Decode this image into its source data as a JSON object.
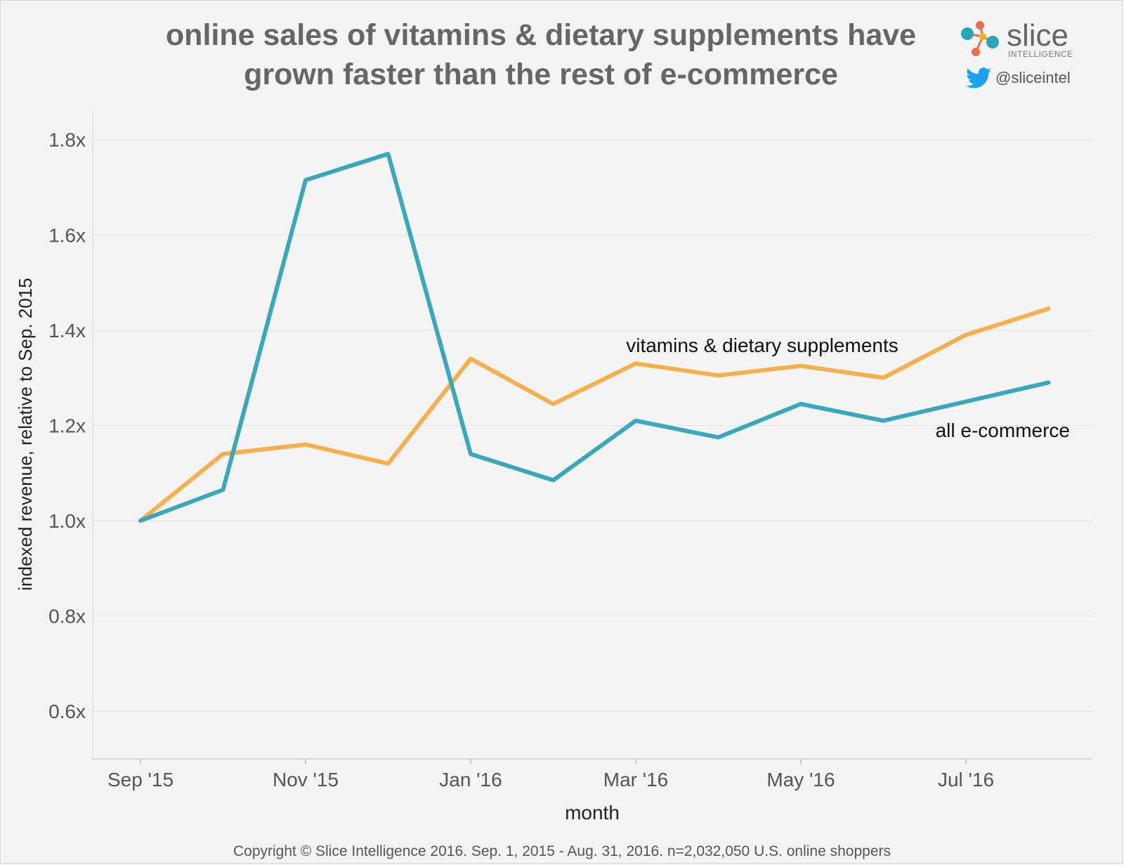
{
  "title": {
    "line1": "online sales of vitamins & dietary supplements have",
    "line2": "grown faster than the rest of e-commerce"
  },
  "brand": {
    "name": "slice",
    "subtitle": "INTELLIGENCE",
    "handle": "@sliceintel",
    "colors": {
      "teal": "#2aa6b9",
      "orange": "#f26b4a",
      "yellow": "#f7b21b"
    }
  },
  "footer": "Copyright © Slice Intelligence 2016. Sep. 1, 2015 - Aug. 31, 2016. n=2,032,050 U.S. online shoppers",
  "chart_data": {
    "type": "line",
    "xlabel": "month",
    "ylabel": "indexed revenue, relative to Sep. 2015",
    "x": [
      "Sep '15",
      "Oct '15",
      "Nov '15",
      "Dec '15",
      "Jan '16",
      "Feb '16",
      "Mar '16",
      "Apr '16",
      "May '16",
      "Jun '16",
      "Jul '16",
      "Aug '16"
    ],
    "x_tick_labels": [
      "Sep '15",
      "Nov '15",
      "Jan '16",
      "Mar '16",
      "May '16",
      "Jul '16"
    ],
    "y_ticks": [
      0.6,
      0.8,
      1.0,
      1.2,
      1.4,
      1.6,
      1.8
    ],
    "y_tick_labels": [
      "0.6x",
      "0.8x",
      "1.0x",
      "1.2x",
      "1.4x",
      "1.6x",
      "1.8x"
    ],
    "ylim": [
      0.5,
      1.86
    ],
    "grid": true,
    "series": [
      {
        "name": "vitamins & dietary supplements",
        "color": "#f5b04c",
        "values": [
          1.0,
          1.14,
          1.16,
          1.12,
          1.34,
          1.245,
          1.33,
          1.305,
          1.325,
          1.3,
          1.39,
          1.445
        ]
      },
      {
        "name": "all e-commerce",
        "color": "#3aa8bc",
        "values": [
          1.0,
          1.065,
          1.715,
          1.77,
          1.14,
          1.085,
          1.21,
          1.175,
          1.245,
          1.21,
          1.25,
          1.29
        ]
      }
    ]
  }
}
